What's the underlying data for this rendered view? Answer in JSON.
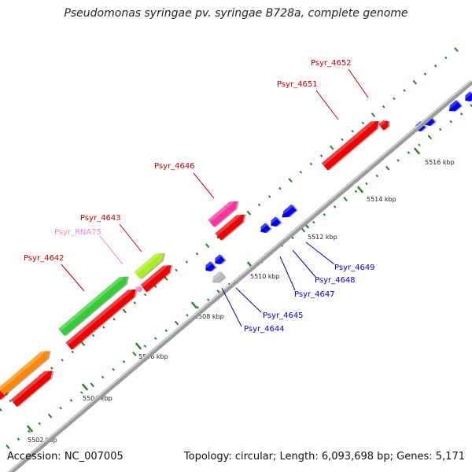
{
  "title": "Pseudomonas syringae pv. syringae B728a, complete genome",
  "footer": {
    "accession": "Accession: NC_007005",
    "summary": "Topology: circular; Length: 6,093,698 bp; Genes: 5,171"
  },
  "colors": {
    "backbone": "#8c8c8c",
    "tick": "#2e7d2e",
    "label_top": "#cc0000",
    "label_bottom": "#0000cc",
    "label_rna": "#ff88cc"
  },
  "ticks": [
    {
      "label": "5502 kbp"
    },
    {
      "label": "5504 kbp"
    },
    {
      "label": "5506 kbp"
    },
    {
      "label": "5508 kbp"
    },
    {
      "label": "5510 kbp"
    },
    {
      "label": "5512 kbp"
    },
    {
      "label": "5514 kbp"
    },
    {
      "label": "5516 kbp"
    }
  ],
  "genes_top": [
    {
      "label": "Psyr_4642",
      "color": "#ff8800"
    },
    {
      "label": "Psyr_4643",
      "color": "#33cc33"
    },
    {
      "label": "Psyr_RNA75",
      "color": "#ff88cc"
    },
    {
      "label": "Psyr_4646",
      "color": "#ff3399"
    },
    {
      "label": "Psyr_4651",
      "color": "#ee0000"
    },
    {
      "label": "Psyr_4652",
      "color": "#ee0000"
    }
  ],
  "genes_bottom": [
    {
      "label": "Psyr_4644",
      "color": "#bbbbbb"
    },
    {
      "label": "Psyr_4645",
      "color": "#0000ee"
    },
    {
      "label": "Psyr_4647",
      "color": "#0000ee"
    },
    {
      "label": "Psyr_4648",
      "color": "#0000ee"
    },
    {
      "label": "Psyr_4649",
      "color": "#0000ee"
    }
  ]
}
